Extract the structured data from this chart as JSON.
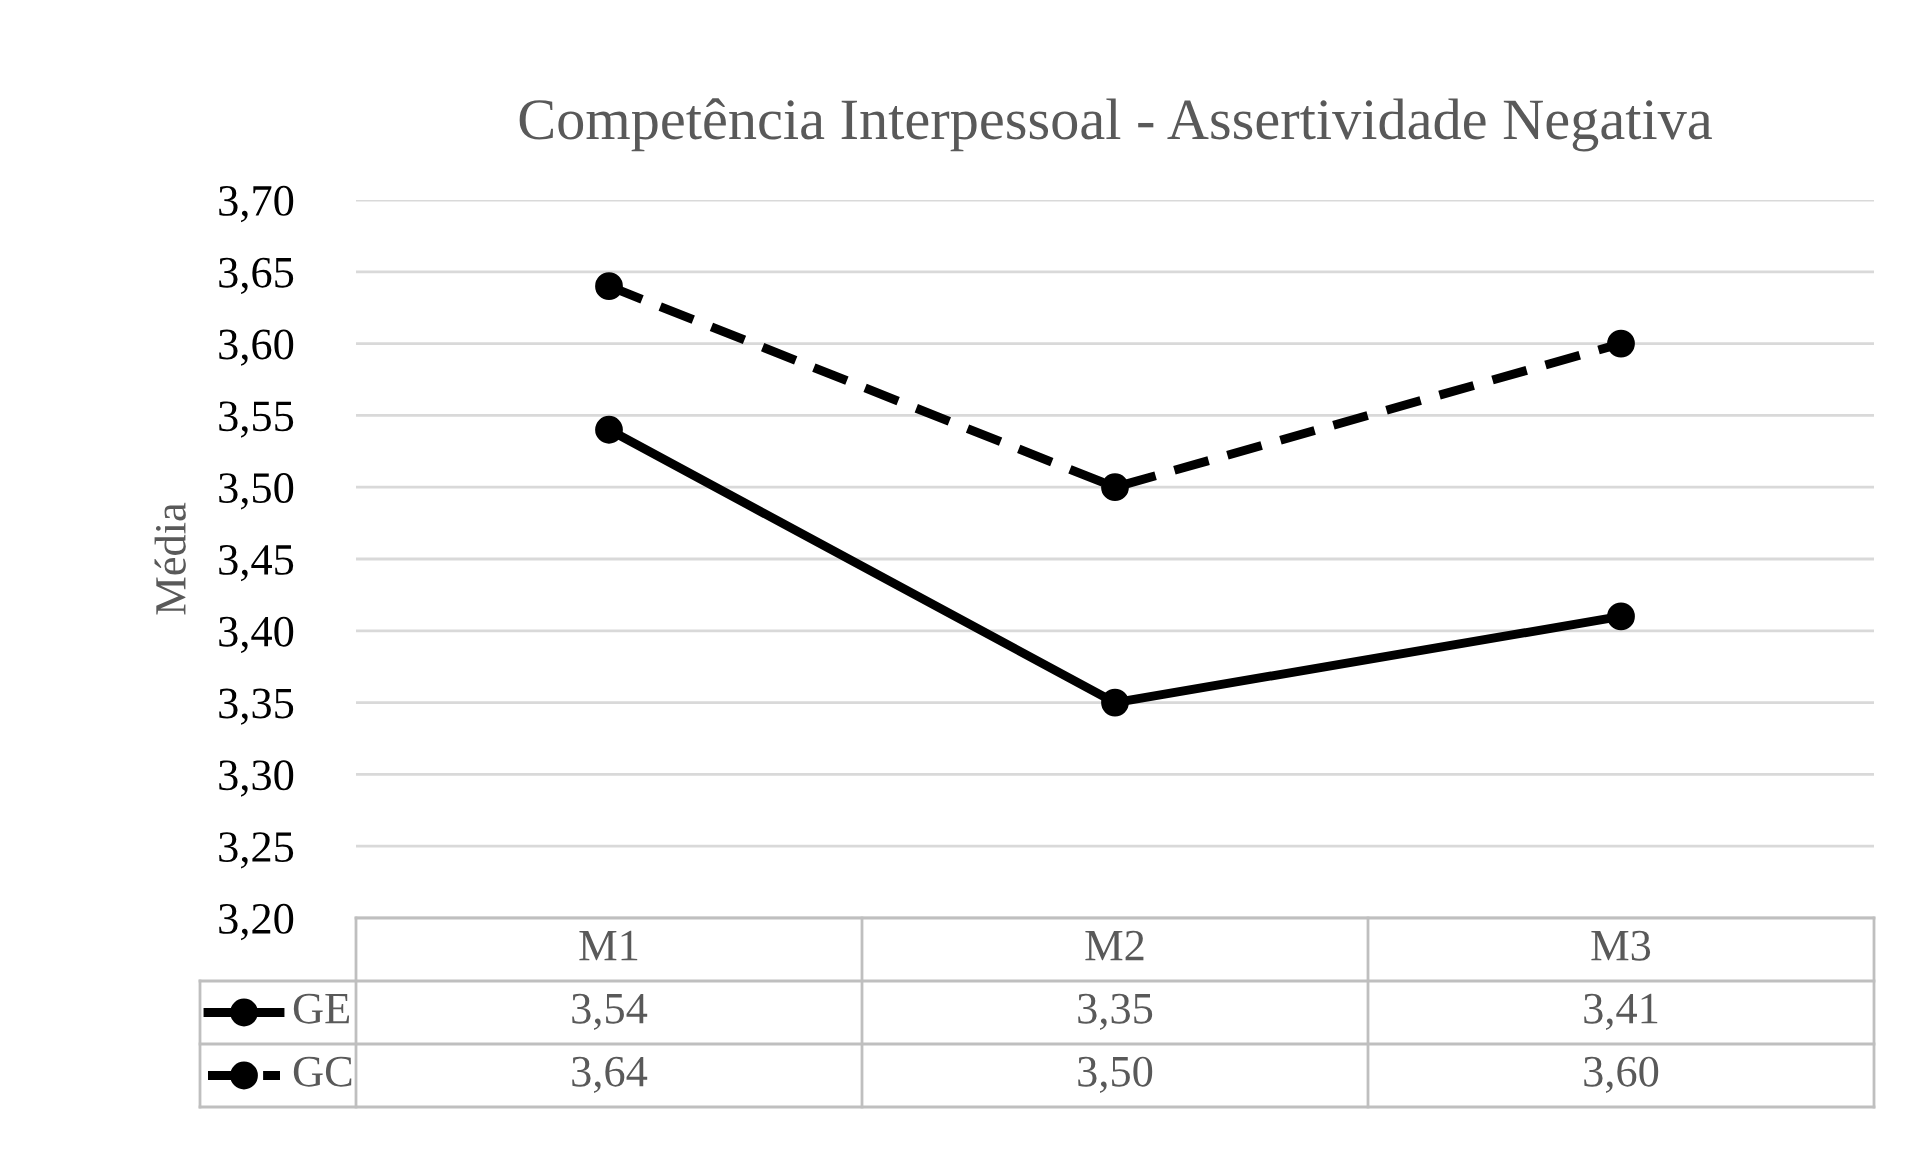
{
  "chart_data": {
    "type": "line",
    "title": "Competência Interpessoal - Assertividade Negativa",
    "ylabel": "Média",
    "categories": [
      "M1",
      "M2",
      "M3"
    ],
    "series": [
      {
        "name": "GE",
        "color": "#000000",
        "line_style": "solid",
        "values": [
          3.54,
          3.35,
          3.41
        ],
        "value_labels": [
          "3,54",
          "3,35",
          "3,41"
        ]
      },
      {
        "name": "GC",
        "color": "#000000",
        "line_style": "dashed",
        "values": [
          3.64,
          3.5,
          3.6
        ],
        "value_labels": [
          "3,64",
          "3,50",
          "3,60"
        ]
      }
    ],
    "ylim": [
      3.2,
      3.7
    ],
    "yticks": [
      {
        "value": 3.2,
        "label": "3,20"
      },
      {
        "value": 3.25,
        "label": "3,25"
      },
      {
        "value": 3.3,
        "label": "3,30"
      },
      {
        "value": 3.35,
        "label": "3,35"
      },
      {
        "value": 3.4,
        "label": "3,40"
      },
      {
        "value": 3.45,
        "label": "3,45"
      },
      {
        "value": 3.5,
        "label": "3,50"
      },
      {
        "value": 3.55,
        "label": "3,55"
      },
      {
        "value": 3.6,
        "label": "3,60"
      },
      {
        "value": 3.65,
        "label": "3,65"
      },
      {
        "value": 3.7,
        "label": "3,70"
      }
    ],
    "grid": "y",
    "marker": "circle",
    "legend": "bottom"
  }
}
